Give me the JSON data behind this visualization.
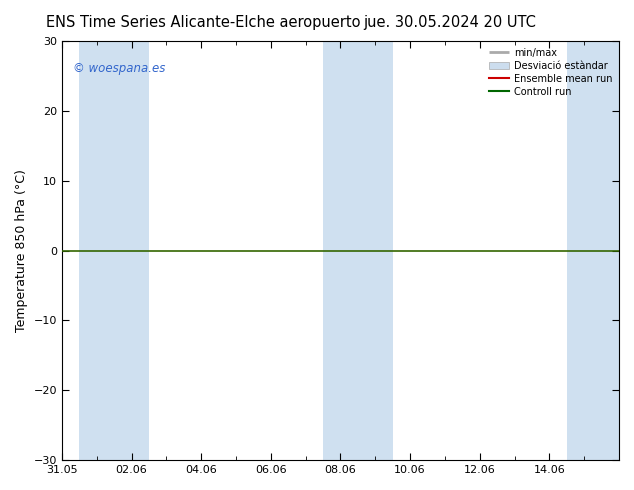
{
  "title": "ENS Time Series Alicante-Elche aeropuerto",
  "title_right": "jue. 30.05.2024 20 UTC",
  "ylabel": "Temperature 850 hPa (°C)",
  "ylim": [
    -30,
    30
  ],
  "yticks": [
    -30,
    -20,
    -10,
    0,
    10,
    20,
    30
  ],
  "xlim_start": 0,
  "xlim_end": 16,
  "xtick_positions": [
    0,
    2,
    4,
    6,
    8,
    10,
    12,
    14
  ],
  "xtick_labels": [
    "31.05",
    "02.06",
    "04.06",
    "06.06",
    "08.06",
    "10.06",
    "12.06",
    "14.06"
  ],
  "shaded_bands": [
    [
      0.5,
      1.5
    ],
    [
      1.5,
      2.5
    ],
    [
      7.5,
      8.5
    ],
    [
      8.5,
      9.5
    ],
    [
      14.5,
      16
    ]
  ],
  "zero_line_y": 0,
  "zero_line_color": "#336600",
  "bg_color": "#ffffff",
  "plot_bg_color": "#ffffff",
  "band_color": "#cfe0f0",
  "copyright_text": "© woespana.es",
  "copyright_color": "#3366cc",
  "legend_minmax_label": "min/max",
  "legend_std_label": "Desviació estàndar",
  "legend_ens_label": "Ensemble mean run",
  "legend_ctrl_label": "Controll run",
  "legend_minmax_color": "#aaaaaa",
  "legend_std_color": "#ccddee",
  "legend_ens_color": "#cc0000",
  "legend_ctrl_color": "#006600",
  "title_fontsize": 10.5,
  "tick_fontsize": 8,
  "ylabel_fontsize": 9
}
